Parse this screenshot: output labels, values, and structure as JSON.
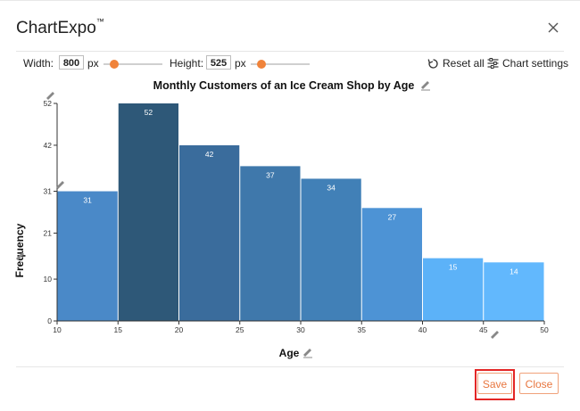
{
  "app": {
    "title": "ChartExpo",
    "trademark": "™"
  },
  "toolbar": {
    "width_label": "Width:",
    "width_value": "800",
    "width_unit": "px",
    "width_slider_fraction": 0.12,
    "height_label": "Height:",
    "height_value": "525",
    "height_unit": "px",
    "height_slider_fraction": 0.12,
    "reset_label": "Reset all",
    "settings_label": "Chart settings"
  },
  "footer": {
    "save_label": "Save",
    "close_label": "Close"
  },
  "colors": {
    "accent": "#f0833a",
    "button_text": "#e8763f",
    "highlight": "#e32626"
  },
  "chart_data": {
    "type": "bar",
    "title": "Monthly Customers of an Ice Cream Shop by Age",
    "xlabel": "Age",
    "ylabel": "Frequency",
    "bin_edges": [
      10,
      15,
      20,
      25,
      30,
      35,
      40,
      45,
      50
    ],
    "values": [
      31,
      52,
      42,
      37,
      34,
      27,
      15,
      14
    ],
    "bar_colors": [
      "#4a89c8",
      "#2e5878",
      "#3a6c9c",
      "#3f78ab",
      "#4180b7",
      "#4d93d5",
      "#5cb2f8",
      "#62b8fd"
    ],
    "y_ticks": [
      0,
      10,
      21,
      31,
      42,
      52
    ],
    "x_ticks": [
      10,
      15,
      20,
      25,
      30,
      35,
      40,
      45,
      50
    ],
    "ylim": [
      0,
      52
    ],
    "xlim": [
      10,
      50
    ],
    "grid": false,
    "legend": "none"
  }
}
